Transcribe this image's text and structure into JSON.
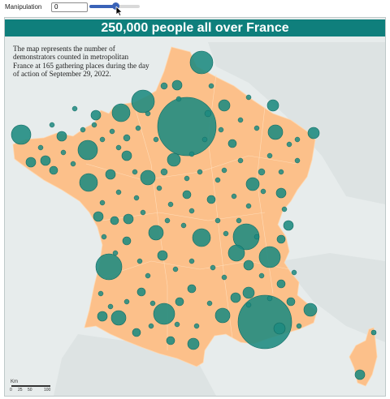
{
  "controls": {
    "label": "Manipulation",
    "value": "0",
    "slider_fraction": 0.52
  },
  "map": {
    "title": "250,000 people all over France",
    "description": "The map represents the number of demonstrators counted in metropolitan France at 165 gathering places during the day of action of September 29, 2022.",
    "scale": {
      "unit": "Km",
      "ticks": [
        "0",
        "25",
        "50",
        "100"
      ]
    },
    "colors": {
      "land": "#fcc08a",
      "sea": "#e7ecec",
      "circles": "#1d8a80",
      "title_bar": "#0f7f7c"
    }
  }
}
